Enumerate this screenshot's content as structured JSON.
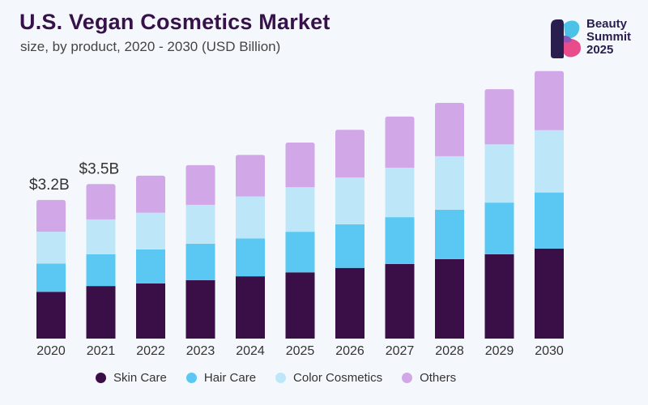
{
  "header": {
    "title": "U.S. Vegan Cosmetics Market",
    "subtitle": "size, by product, 2020 - 2030 (USD Billion)"
  },
  "logo": {
    "line1": "Beauty",
    "line2": "Summit",
    "line3": "2025"
  },
  "colors": {
    "skin_care": "#3a0f47",
    "hair_care": "#5ac8f2",
    "color_cosmetics": "#bde7f8",
    "others": "#d1a7e8"
  },
  "chart_data": {
    "type": "bar",
    "stacked": true,
    "title": "U.S. Vegan Cosmetics Market",
    "subtitle": "size, by product, 2020 - 2030 (USD Billion)",
    "xlabel": "",
    "ylabel": "USD Billion",
    "ylim": [
      0,
      6.5
    ],
    "grid": false,
    "legend_position": "bottom",
    "categories": [
      "2020",
      "2021",
      "2022",
      "2023",
      "2024",
      "2025",
      "2026",
      "2027",
      "2028",
      "2029",
      "2030"
    ],
    "series": [
      {
        "name": "Skin Care",
        "color": "#3a0f47",
        "values": [
          1.06,
          1.19,
          1.25,
          1.32,
          1.41,
          1.5,
          1.6,
          1.69,
          1.8,
          1.91,
          2.04
        ]
      },
      {
        "name": "Hair Care",
        "color": "#5ac8f2",
        "values": [
          0.64,
          0.72,
          0.77,
          0.83,
          0.86,
          0.92,
          0.99,
          1.06,
          1.12,
          1.17,
          1.27
        ]
      },
      {
        "name": "Color Cosmetics",
        "color": "#bde7f8",
        "values": [
          0.72,
          0.79,
          0.83,
          0.88,
          0.95,
          1.01,
          1.06,
          1.12,
          1.21,
          1.32,
          1.41
        ]
      },
      {
        "name": "Others",
        "color": "#d1a7e8",
        "values": [
          0.72,
          0.8,
          0.84,
          0.9,
          0.94,
          1.01,
          1.08,
          1.16,
          1.21,
          1.25,
          1.34
        ]
      }
    ],
    "annotations": [
      {
        "category": "2020",
        "text": "$3.2B"
      },
      {
        "category": "2021",
        "text": "$3.5B"
      }
    ]
  }
}
